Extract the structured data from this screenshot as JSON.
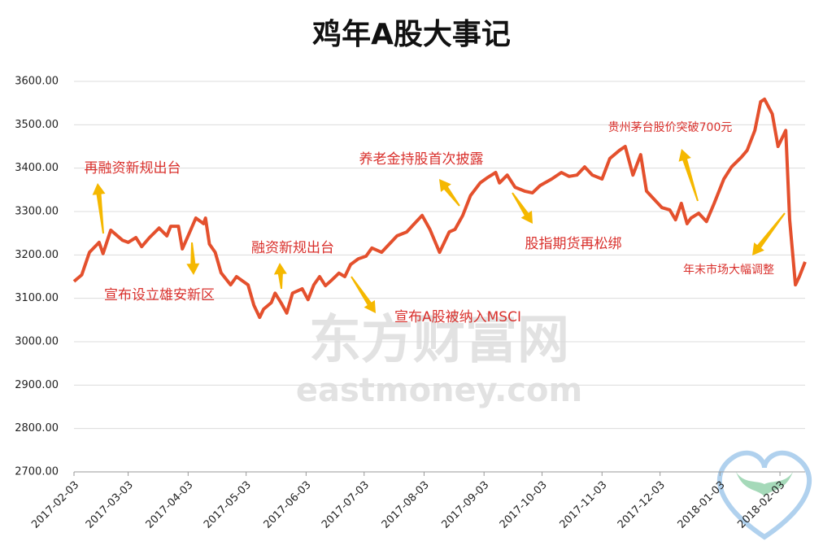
{
  "chart_data": {
    "type": "line",
    "title": "鸡年A股大事记",
    "watermark": [
      "东方财富网",
      "eastmoney.com"
    ],
    "color": "#e4502d",
    "grid": true,
    "x": [
      "2017-02-03",
      "2017-02-07",
      "2017-02-11",
      "2017-02-16",
      "2017-02-18",
      "2017-02-22",
      "2017-02-28",
      "2017-03-03",
      "2017-03-07",
      "2017-03-10",
      "2017-03-14",
      "2017-03-19",
      "2017-03-23",
      "2017-03-25",
      "2017-03-29",
      "2017-03-31",
      "2017-04-03",
      "2017-04-07",
      "2017-04-11",
      "2017-04-12",
      "2017-04-14",
      "2017-04-17",
      "2017-04-20",
      "2017-04-25",
      "2017-04-28",
      "2017-05-04",
      "2017-05-07",
      "2017-05-10",
      "2017-05-12",
      "2017-05-16",
      "2017-05-18",
      "2017-05-21",
      "2017-05-24",
      "2017-05-27",
      "2017-06-01",
      "2017-06-04",
      "2017-06-07",
      "2017-06-10",
      "2017-06-13",
      "2017-06-16",
      "2017-06-20",
      "2017-06-23",
      "2017-06-26",
      "2017-06-30",
      "2017-07-04",
      "2017-07-07",
      "2017-07-12",
      "2017-07-16",
      "2017-07-20",
      "2017-07-25",
      "2017-07-29",
      "2017-08-02",
      "2017-08-06",
      "2017-08-11",
      "2017-08-16",
      "2017-08-19",
      "2017-08-23",
      "2017-08-27",
      "2017-09-01",
      "2017-09-05",
      "2017-09-09",
      "2017-09-11",
      "2017-09-15",
      "2017-09-19",
      "2017-09-24",
      "2017-09-28",
      "2017-10-02",
      "2017-10-08",
      "2017-10-13",
      "2017-10-17",
      "2017-10-21",
      "2017-10-25",
      "2017-10-29",
      "2017-11-03",
      "2017-11-07",
      "2017-11-12",
      "2017-11-15",
      "2017-11-19",
      "2017-11-23",
      "2017-11-26",
      "2017-11-30",
      "2017-12-04",
      "2017-12-08",
      "2017-12-11",
      "2017-12-14",
      "2017-12-17",
      "2017-12-19",
      "2017-12-23",
      "2017-12-27",
      "2017-12-31",
      "2018-01-05",
      "2018-01-09",
      "2018-01-14",
      "2018-01-17",
      "2018-01-21",
      "2018-01-24",
      "2018-01-26",
      "2018-01-30",
      "2018-02-02",
      "2018-02-06",
      "2018-02-08",
      "2018-02-11",
      "2018-02-13",
      "2018-02-16"
    ],
    "values": [
      3139,
      3154,
      3206,
      3229,
      3203,
      3257,
      3234,
      3229,
      3240,
      3219,
      3240,
      3262,
      3244,
      3266,
      3266,
      3214,
      3244,
      3285,
      3272,
      3285,
      3225,
      3206,
      3159,
      3131,
      3150,
      3131,
      3084,
      3056,
      3075,
      3090,
      3112,
      3090,
      3066,
      3112,
      3122,
      3097,
      3131,
      3150,
      3129,
      3141,
      3158,
      3150,
      3178,
      3191,
      3197,
      3216,
      3206,
      3225,
      3244,
      3253,
      3272,
      3291,
      3259,
      3206,
      3253,
      3259,
      3291,
      3337,
      3366,
      3379,
      3390,
      3366,
      3384,
      3356,
      3347,
      3343,
      3360,
      3375,
      3390,
      3381,
      3384,
      3403,
      3384,
      3375,
      3422,
      3441,
      3450,
      3384,
      3431,
      3347,
      3328,
      3309,
      3304,
      3281,
      3319,
      3272,
      3285,
      3296,
      3277,
      3319,
      3375,
      3403,
      3425,
      3441,
      3487,
      3553,
      3559,
      3525,
      3450,
      3487,
      3281,
      3131,
      3150,
      3184
    ],
    "xlim": [
      "2017-02-03",
      "2018-02-16"
    ],
    "xticks": [
      "2017-02-03",
      "2017-03-03",
      "2017-04-03",
      "2017-05-03",
      "2017-06-03",
      "2017-07-03",
      "2017-08-03",
      "2017-09-03",
      "2017-10-03",
      "2017-11-03",
      "2017-12-03",
      "2018-01-03",
      "2018-02-03"
    ],
    "ylim": [
      2700,
      3600
    ],
    "yticks": [
      {
        "value": 2700,
        "label": "2700.00"
      },
      {
        "value": 2800,
        "label": "2800.00"
      },
      {
        "value": 2900,
        "label": "2900.00"
      },
      {
        "value": 3000,
        "label": "3000.00"
      },
      {
        "value": 3100,
        "label": "3100.00"
      },
      {
        "value": 3200,
        "label": "3200.00"
      },
      {
        "value": 3300,
        "label": "3300.00"
      },
      {
        "value": 3400,
        "label": "3400.00"
      },
      {
        "value": 3500,
        "label": "3500.00"
      },
      {
        "value": 3600,
        "label": "3600.00"
      }
    ],
    "annotations": [
      "再融资新规出台",
      "宣布设立雄安新区",
      "融资新规出台",
      "宣布A股被纳入MSCI",
      "养老金持股首次披露",
      "股指期货再松绑",
      "贵州茅台股价突破700元",
      "年末市场大幅调整"
    ]
  }
}
